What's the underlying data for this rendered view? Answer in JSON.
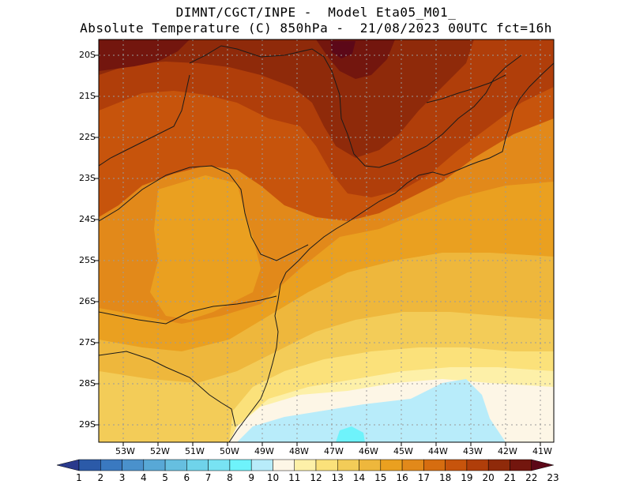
{
  "header": {
    "line1": "DIMNT/CGCT/INPE -  Model Eta05_M01_",
    "line2": "Absolute Temperature (C) 850hPa -  21/08/2023 00UTC fct=16h"
  },
  "axes": {
    "lat_labels": [
      "20S",
      "21S",
      "22S",
      "23S",
      "24S",
      "25S",
      "26S",
      "27S",
      "28S",
      "29S"
    ],
    "lon_labels": [
      "53W",
      "52W",
      "51W",
      "50W",
      "49W",
      "48W",
      "47W",
      "46W",
      "45W",
      "44W",
      "43W",
      "42W",
      "41W"
    ]
  },
  "colorbar": {
    "labels": [
      "1",
      "2",
      "3",
      "4",
      "5",
      "6",
      "7",
      "8",
      "9",
      "10",
      "11",
      "12",
      "13",
      "14",
      "15",
      "16",
      "17",
      "18",
      "19",
      "20",
      "21",
      "22",
      "23"
    ],
    "colors": [
      "#2a3a8c",
      "#2b5aa8",
      "#3a79c0",
      "#4a91cc",
      "#58a8d6",
      "#66bfe0",
      "#6fd3ea",
      "#78e3f3",
      "#6ef3fb",
      "#b8ecfa",
      "#fdf6e6",
      "#fdf0a8",
      "#fbe17a",
      "#f3cc58",
      "#eeb73c",
      "#eaa020",
      "#e2891a",
      "#d66d10",
      "#c7540c",
      "#b03e0a",
      "#8f2a0a",
      "#73160e",
      "#5c0818"
    ]
  },
  "chart_data": {
    "type": "heatmap",
    "title": "Absolute Temperature (C) 850hPa",
    "model": "Eta05_M01_",
    "run": "21/08/2023 00UTC",
    "forecast_hour": 16,
    "lon_range": [
      -53.6,
      -40.6
    ],
    "lat_range": [
      -29.4,
      -19.8
    ],
    "units": "C",
    "levels": [
      1,
      2,
      3,
      4,
      5,
      6,
      7,
      8,
      9,
      10,
      11,
      12,
      13,
      14,
      15,
      16,
      17,
      18,
      19,
      20,
      21,
      22,
      23
    ]
  }
}
